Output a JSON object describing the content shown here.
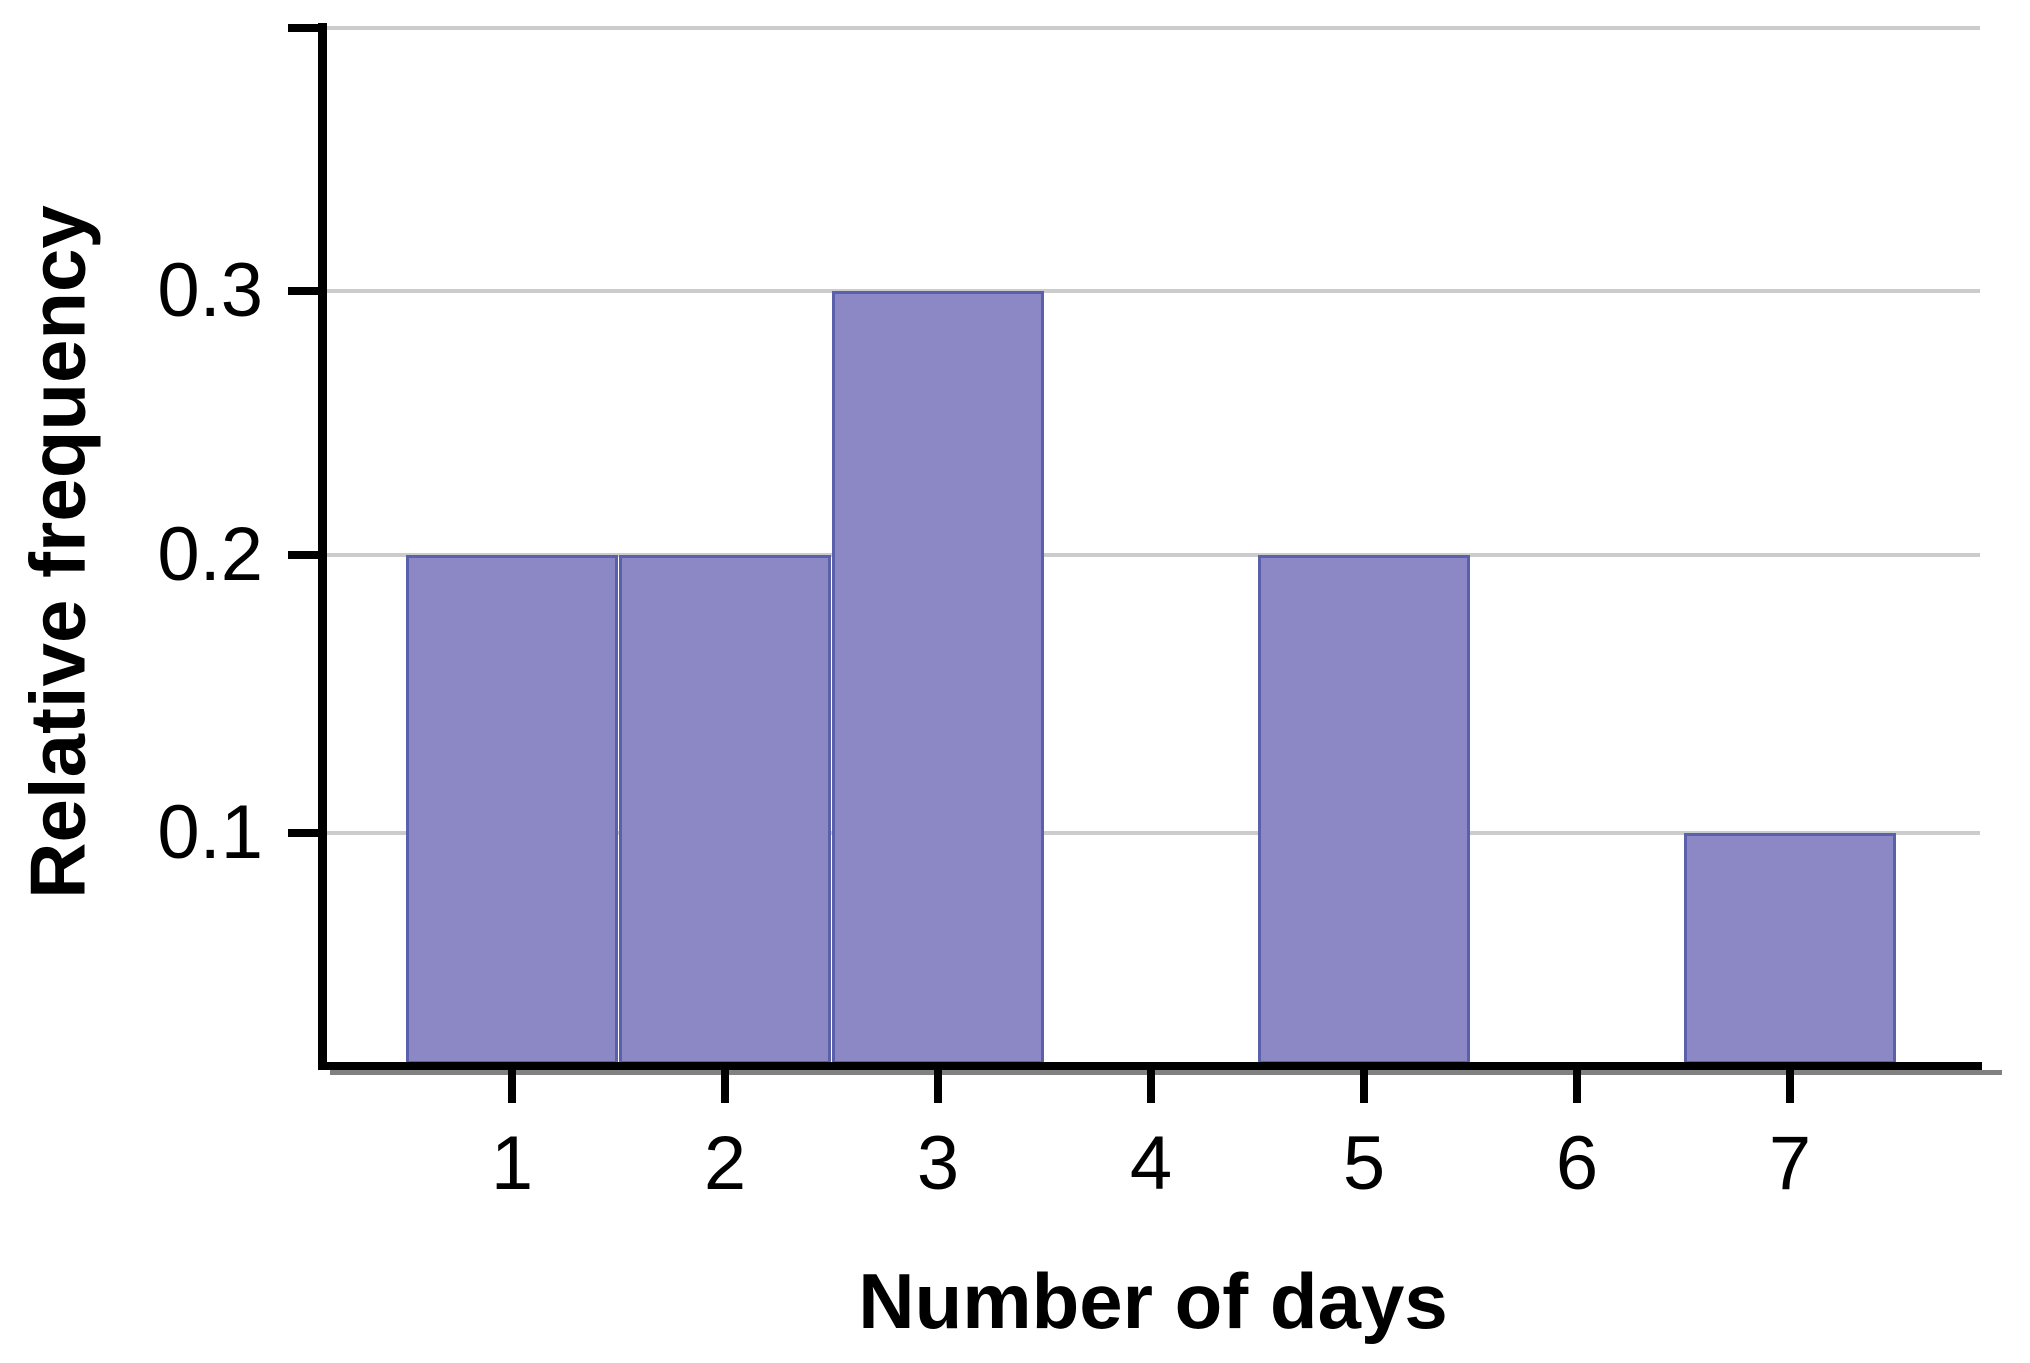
{
  "figure": {
    "background": "#ffffff",
    "colors": {
      "bar_fill": "#8b88c5",
      "bar_border": "#5a61aa",
      "gridline": "#cccccc",
      "axis": "#000000",
      "axis_shadow": "#818181",
      "text": "#000000"
    }
  },
  "chart_data": {
    "type": "bar",
    "chart_kind": "relative-frequency-histogram",
    "title": "",
    "xlabel": "Number of days",
    "ylabel": "Relative frequency",
    "categories": [
      "1",
      "2",
      "3",
      "4",
      "5",
      "6",
      "7"
    ],
    "values": [
      0.2,
      0.2,
      0.3,
      0,
      0.2,
      0,
      0.1
    ],
    "bar_width_units": 1,
    "bars_touch_adjacent": true,
    "xlim": [
      0.5,
      7.7
    ],
    "ylim": [
      0,
      0.4
    ],
    "yticks": [
      {
        "value": 0.1,
        "label": "0.1"
      },
      {
        "value": 0.2,
        "label": "0.2"
      },
      {
        "value": 0.3,
        "label": "0.3"
      },
      {
        "value": 0.4,
        "label": ""
      }
    ],
    "grid": true,
    "grid_axis": "y",
    "legend": false
  }
}
